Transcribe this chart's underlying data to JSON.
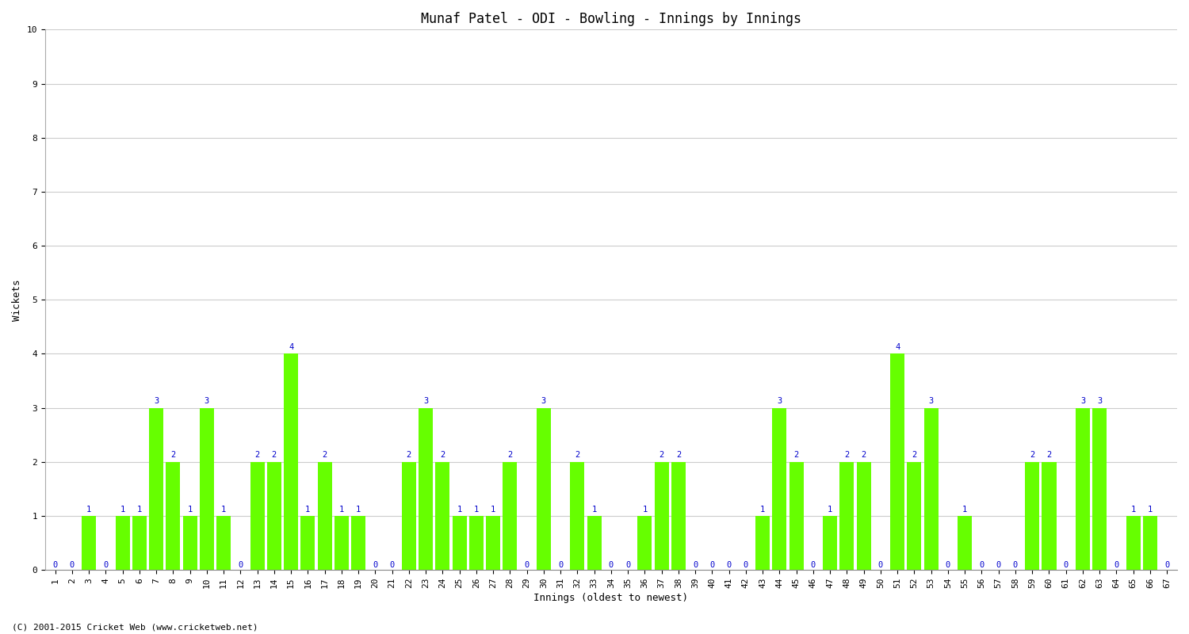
{
  "title": "Munaf Patel - ODI - Bowling - Innings by Innings",
  "xlabel": "Innings (oldest to newest)",
  "ylabel": "Wickets",
  "footer": "(C) 2001-2015 Cricket Web (www.cricketweb.net)",
  "ylim": [
    0,
    10
  ],
  "yticks": [
    0,
    1,
    2,
    3,
    4,
    5,
    6,
    7,
    8,
    9,
    10
  ],
  "bar_color": "#66ff00",
  "label_color": "#0000cc",
  "categories": [
    "1",
    "2",
    "3",
    "4",
    "5",
    "6",
    "7",
    "8",
    "9",
    "10",
    "11",
    "12",
    "13",
    "14",
    "15",
    "16",
    "17",
    "18",
    "19",
    "20",
    "21",
    "22",
    "23",
    "24",
    "25",
    "26",
    "27",
    "28",
    "29",
    "30",
    "31",
    "32",
    "33",
    "34",
    "35",
    "36",
    "37",
    "38",
    "39",
    "40",
    "41",
    "42",
    "43",
    "44",
    "45",
    "46",
    "47",
    "48",
    "49",
    "50",
    "51",
    "52",
    "53",
    "54",
    "55",
    "56",
    "57",
    "58",
    "59",
    "60",
    "61",
    "62",
    "63",
    "64",
    "65",
    "66",
    "67"
  ],
  "values": [
    0,
    0,
    1,
    0,
    1,
    1,
    3,
    2,
    1,
    3,
    1,
    0,
    2,
    2,
    4,
    1,
    2,
    1,
    1,
    0,
    0,
    2,
    3,
    2,
    1,
    1,
    1,
    2,
    0,
    3,
    0,
    2,
    1,
    0,
    0,
    1,
    2,
    2,
    0,
    0,
    0,
    0,
    1,
    3,
    2,
    0,
    1,
    2,
    2,
    0,
    4,
    2,
    3,
    0,
    1,
    0,
    0,
    0,
    2,
    2,
    0,
    3,
    3,
    0,
    1,
    1,
    0
  ],
  "background_color": "#ffffff",
  "grid_color": "#cccccc",
  "title_fontsize": 12,
  "axis_fontsize": 8,
  "label_fontsize": 7.5,
  "bar_width": 0.85
}
